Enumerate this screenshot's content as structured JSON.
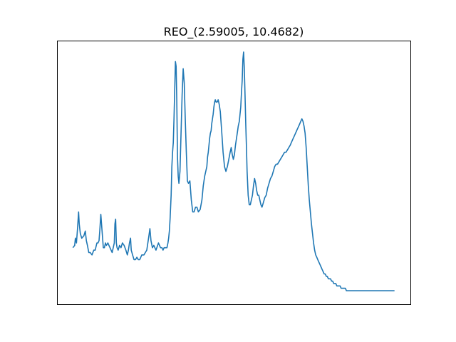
{
  "chart_data": {
    "type": "line",
    "title": "REO_(2.59005, 10.4682)",
    "xlabel": "",
    "ylabel": "",
    "grid": false,
    "xticks": false,
    "yticks": false,
    "xlim": [
      0,
      1
    ],
    "ylim": [
      0,
      1
    ],
    "series": [
      {
        "color": "#1f77b4",
        "x": [
          0.045,
          0.05,
          0.052,
          0.055,
          0.058,
          0.061,
          0.063,
          0.066,
          0.07,
          0.076,
          0.08,
          0.083,
          0.086,
          0.09,
          0.094,
          0.099,
          0.104,
          0.108,
          0.113,
          0.116,
          0.119,
          0.121,
          0.124,
          0.127,
          0.131,
          0.134,
          0.137,
          0.14,
          0.144,
          0.147,
          0.15,
          0.153,
          0.156,
          0.159,
          0.162,
          0.164,
          0.166,
          0.168,
          0.17,
          0.173,
          0.177,
          0.181,
          0.185,
          0.19,
          0.195,
          0.199,
          0.202,
          0.205,
          0.208,
          0.21,
          0.214,
          0.218,
          0.222,
          0.226,
          0.23,
          0.234,
          0.24,
          0.246,
          0.25,
          0.254,
          0.257,
          0.26,
          0.263,
          0.266,
          0.27,
          0.274,
          0.28,
          0.287,
          0.293,
          0.297,
          0.3,
          0.303,
          0.306,
          0.308,
          0.311,
          0.314,
          0.316,
          0.318,
          0.32,
          0.323,
          0.325,
          0.327,
          0.329,
          0.331,
          0.333,
          0.335,
          0.337,
          0.339,
          0.341,
          0.343,
          0.345,
          0.348,
          0.351,
          0.354,
          0.357,
          0.36,
          0.363,
          0.366,
          0.369,
          0.372,
          0.376,
          0.38,
          0.384,
          0.388,
          0.392,
          0.396,
          0.4,
          0.405,
          0.41,
          0.414,
          0.418,
          0.421,
          0.424,
          0.426,
          0.428,
          0.43,
          0.432,
          0.434,
          0.436,
          0.438,
          0.44,
          0.442,
          0.444,
          0.446,
          0.448,
          0.45,
          0.453,
          0.456,
          0.459,
          0.462,
          0.466,
          0.47,
          0.474,
          0.478,
          0.482,
          0.486,
          0.49,
          0.493,
          0.496,
          0.499,
          0.502,
          0.505,
          0.508,
          0.511,
          0.513,
          0.516,
          0.518,
          0.52,
          0.522,
          0.524,
          0.526,
          0.528,
          0.53,
          0.532,
          0.534,
          0.536,
          0.538,
          0.541,
          0.544,
          0.547,
          0.55,
          0.553,
          0.556,
          0.559,
          0.562,
          0.565,
          0.568,
          0.571,
          0.574,
          0.577,
          0.58,
          0.584,
          0.588,
          0.592,
          0.596,
          0.6,
          0.604,
          0.608,
          0.612,
          0.616,
          0.62,
          0.624,
          0.628,
          0.632,
          0.636,
          0.64,
          0.644,
          0.648,
          0.652,
          0.656,
          0.66,
          0.663,
          0.666,
          0.669,
          0.672,
          0.675,
          0.678,
          0.681,
          0.684,
          0.687,
          0.69,
          0.693,
          0.696,
          0.699,
          0.702,
          0.705,
          0.708,
          0.711,
          0.714,
          0.717,
          0.72,
          0.723,
          0.726,
          0.729,
          0.732,
          0.735,
          0.738,
          0.741,
          0.744,
          0.747,
          0.75,
          0.753,
          0.756,
          0.759,
          0.762,
          0.765,
          0.768,
          0.771,
          0.774,
          0.777,
          0.78,
          0.783,
          0.786,
          0.789,
          0.792,
          0.795,
          0.798,
          0.801,
          0.804,
          0.807,
          0.81,
          0.813,
          0.816,
          0.819,
          0.822,
          0.825,
          0.828,
          0.831,
          0.834,
          0.837,
          0.84,
          0.843,
          0.846,
          0.849,
          0.852,
          0.855,
          0.858,
          0.861,
          0.864,
          0.867,
          0.87,
          0.873,
          0.876,
          0.88,
          0.884,
          0.888,
          0.892,
          0.896,
          0.9,
          0.905,
          0.91,
          0.915,
          0.92,
          0.925,
          0.93,
          0.935,
          0.94,
          0.945,
          0.95,
          0.955
        ],
        "y": [
          0.18,
          0.19,
          0.22,
          0.2,
          0.26,
          0.33,
          0.28,
          0.24,
          0.22,
          0.23,
          0.25,
          0.21,
          0.19,
          0.16,
          0.16,
          0.15,
          0.17,
          0.17,
          0.2,
          0.2,
          0.21,
          0.25,
          0.32,
          0.26,
          0.18,
          0.18,
          0.2,
          0.19,
          0.2,
          0.19,
          0.18,
          0.17,
          0.16,
          0.18,
          0.2,
          0.28,
          0.3,
          0.2,
          0.18,
          0.17,
          0.19,
          0.18,
          0.2,
          0.19,
          0.17,
          0.15,
          0.17,
          0.2,
          0.22,
          0.17,
          0.15,
          0.13,
          0.13,
          0.14,
          0.13,
          0.13,
          0.15,
          0.15,
          0.16,
          0.17,
          0.2,
          0.23,
          0.26,
          0.21,
          0.18,
          0.19,
          0.17,
          0.2,
          0.18,
          0.18,
          0.17,
          0.18,
          0.18,
          0.18,
          0.18,
          0.2,
          0.22,
          0.25,
          0.3,
          0.4,
          0.52,
          0.58,
          0.62,
          0.72,
          0.84,
          0.96,
          0.94,
          0.8,
          0.56,
          0.48,
          0.45,
          0.5,
          0.66,
          0.82,
          0.93,
          0.87,
          0.72,
          0.58,
          0.46,
          0.45,
          0.46,
          0.38,
          0.33,
          0.33,
          0.35,
          0.35,
          0.33,
          0.34,
          0.38,
          0.44,
          0.48,
          0.5,
          0.52,
          0.56,
          0.58,
          0.61,
          0.64,
          0.66,
          0.67,
          0.7,
          0.72,
          0.74,
          0.77,
          0.79,
          0.8,
          0.79,
          0.79,
          0.8,
          0.78,
          0.75,
          0.67,
          0.58,
          0.52,
          0.5,
          0.52,
          0.55,
          0.58,
          0.6,
          0.57,
          0.55,
          0.57,
          0.61,
          0.64,
          0.67,
          0.69,
          0.71,
          0.74,
          0.77,
          0.83,
          0.88,
          0.97,
          1.0,
          0.93,
          0.82,
          0.7,
          0.6,
          0.5,
          0.4,
          0.36,
          0.36,
          0.38,
          0.4,
          0.44,
          0.47,
          0.45,
          0.42,
          0.4,
          0.4,
          0.38,
          0.36,
          0.35,
          0.37,
          0.39,
          0.4,
          0.43,
          0.45,
          0.47,
          0.48,
          0.5,
          0.52,
          0.53,
          0.53,
          0.54,
          0.55,
          0.56,
          0.57,
          0.58,
          0.58,
          0.59,
          0.6,
          0.61,
          0.62,
          0.63,
          0.64,
          0.65,
          0.66,
          0.67,
          0.68,
          0.69,
          0.7,
          0.71,
          0.72,
          0.71,
          0.69,
          0.66,
          0.6,
          0.52,
          0.44,
          0.38,
          0.33,
          0.28,
          0.24,
          0.2,
          0.17,
          0.15,
          0.14,
          0.13,
          0.12,
          0.11,
          0.1,
          0.09,
          0.08,
          0.07,
          0.07,
          0.06,
          0.06,
          0.05,
          0.05,
          0.05,
          0.04,
          0.04,
          0.03,
          0.03,
          0.03,
          0.02,
          0.02,
          0.02,
          0.02,
          0.01,
          0.01,
          0.01,
          0.01,
          0.01,
          0.0,
          0.0,
          0.0,
          0.0,
          0.0,
          0.0,
          0.0,
          0.0,
          0.0,
          0.0,
          0.0,
          0.0,
          0.0,
          0.0,
          0.0,
          0.0,
          0.0,
          0.0,
          0.0,
          0.0,
          0.0,
          0.0,
          0.0,
          0.0,
          0.0,
          0.0,
          0.0,
          0.0,
          0.0,
          0.0,
          0.0,
          0.0,
          0.0,
          0.0,
          0.0,
          0.0,
          0.0
        ]
      }
    ]
  }
}
